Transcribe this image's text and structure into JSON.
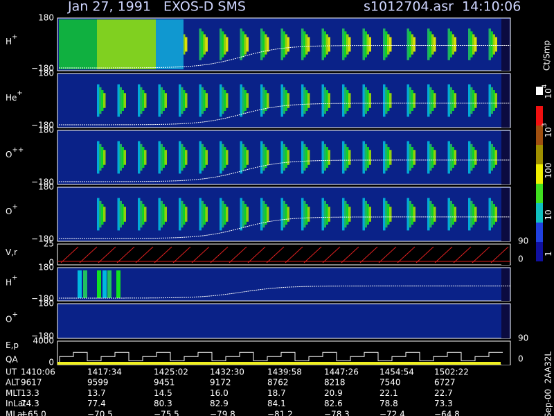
{
  "header": {
    "title": "Jan 27, 1991   EXOS-D SMS",
    "file": "s1012704.asr  14:10:06"
  },
  "panels": [
    {
      "label": "H",
      "sup": "+",
      "yticks": [
        "180",
        "−180"
      ]
    },
    {
      "label": "He",
      "sup": "+",
      "yticks": [
        "180",
        "−180"
      ]
    },
    {
      "label": "O",
      "sup": "++",
      "yticks": [
        "180",
        "−180"
      ]
    },
    {
      "label": "O",
      "sup": "+",
      "yticks": [
        "180",
        "−180"
      ]
    },
    {
      "label": "V,r",
      "yticks": [
        "25",
        "0"
      ],
      "y2ticks": [
        "90",
        "0"
      ]
    },
    {
      "label": "H",
      "sup": "+",
      "yticks": [
        "180",
        "−180"
      ]
    },
    {
      "label": "O",
      "sup": "+",
      "yticks": [
        "180",
        "−180"
      ]
    },
    {
      "label": "E,p",
      "label2": "QA",
      "yticks": [
        "4000",
        "0"
      ],
      "y2ticks": [
        "90",
        "0"
      ]
    }
  ],
  "colorbar": {
    "label": "Ct/Smp",
    "ticks": [
      {
        "base": "1"
      },
      {
        "base": "10"
      },
      {
        "base": "100"
      },
      {
        "base": "10",
        "sup": "3"
      },
      {
        "base": "10",
        "sup": "4"
      }
    ]
  },
  "footer": {
    "rows": [
      {
        "label": "UT",
        "values": [
          "1410:06",
          "1417:34",
          "1425:02",
          "1432:30",
          "1439:58",
          "1447:26",
          "1454:54",
          "1502:22"
        ]
      },
      {
        "label": "ALT",
        "values": [
          "9617",
          "9599",
          "9451",
          "9172",
          "8762",
          "8218",
          "7540",
          "6727"
        ]
      },
      {
        "label": "MLT",
        "values": [
          "13.3",
          "13.7",
          "14.5",
          "16.0",
          "18.7",
          "20.9",
          "22.1",
          "22.7"
        ]
      },
      {
        "label": "InLat",
        "values": [
          "74.3",
          "77.4",
          "80.3",
          "82.9",
          "84.1",
          "82.6",
          "78.8",
          "73.3"
        ]
      },
      {
        "label": "MLat",
        "values": [
          "−65.0",
          "−70.5",
          "−75.5",
          "−79.8",
          "−81.2",
          "−78.3",
          "−72.4",
          "−64.8"
        ]
      }
    ]
  },
  "credit": "Sep-00  2AA32L"
}
